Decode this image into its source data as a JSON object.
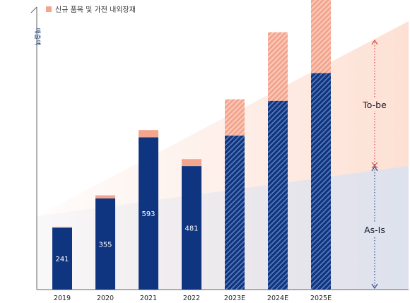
{
  "chart_data": {
    "type": "bar",
    "stacked": true,
    "ylabel": "매출액",
    "legend": {
      "label": "신규 품목 및 가전 내외장재",
      "color": "#f4a58e",
      "position": "top-left"
    },
    "categories": [
      "2019",
      "2020",
      "2021",
      "2022",
      "2023E",
      "2024E",
      "2025E"
    ],
    "series": [
      {
        "values": [
          241,
          355,
          593,
          481,
          600,
          735,
          843
        ],
        "color": "#0f3580",
        "hatched_from_index": 4,
        "value_labels": [
          "241",
          "355",
          "593",
          "481",
          "",
          "",
          ""
        ]
      },
      {
        "name": "신규 품목 및 가전 내외장재",
        "values": [
          3,
          12,
          28,
          27,
          141,
          267,
          303
        ],
        "color": "#f4a58e",
        "hatched_from_index": 4
      }
    ],
    "ylim": [
      0,
      1100
    ],
    "grid": false,
    "annotations": [
      {
        "text": "To-be",
        "span": "top"
      },
      {
        "text": "As-Is",
        "span": "bottom"
      }
    ],
    "colors": {
      "tobe_area": "#fde6dc",
      "asis_area": "#e1e5ef",
      "upper_arrow": "#d84a4a",
      "lower_arrow": "#2c4d9c"
    }
  }
}
